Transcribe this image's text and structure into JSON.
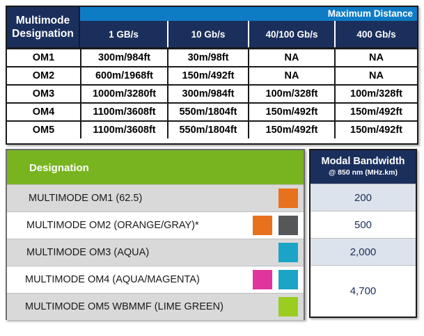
{
  "max_distance": {
    "corner_header": [
      "Multimode",
      "Designation"
    ],
    "group_header": "Maximum Distance",
    "speeds": [
      "1 GB/s",
      "10 Gb/s",
      "40/100 Gb/s",
      "400 Gb/s"
    ],
    "rows": [
      {
        "designation": "OM1",
        "values": [
          "300m/984ft",
          "30m/98ft",
          "NA",
          "NA"
        ]
      },
      {
        "designation": "OM2",
        "values": [
          "600m/1968ft",
          "150m/492ft",
          "NA",
          "NA"
        ]
      },
      {
        "designation": "OM3",
        "values": [
          "1000m/3280ft",
          "300m/984ft",
          "100m/328ft",
          "100m/328ft"
        ]
      },
      {
        "designation": "OM4",
        "values": [
          "1100m/3608ft",
          "550m/1804ft",
          "150m/492ft",
          "150m/492ft"
        ]
      },
      {
        "designation": "OM5",
        "values": [
          "1100m/3608ft",
          "550m/1804ft",
          "150m/492ft",
          "150m/492ft"
        ]
      }
    ]
  },
  "designation_table": {
    "header": "Designation",
    "header_color": "#78b420",
    "rows": [
      {
        "label": "MULTIMODE OM1 (62.5)",
        "colors": [
          "#e8711e"
        ]
      },
      {
        "label": "MULTIMODE OM2 (ORANGE/GRAY)*",
        "colors": [
          "#e8711e",
          "#555759"
        ]
      },
      {
        "label": "MULTIMODE OM3 (AQUA)",
        "colors": [
          "#1ca3c8"
        ]
      },
      {
        "label": "MULTIMODE OM4 (AQUA/MAGENTA)",
        "colors": [
          "#e0359a",
          "#1ca3c8"
        ]
      },
      {
        "label": "MULTIMODE OM5 WBMMF (LIME GREEN)",
        "colors": [
          "#9acd20"
        ]
      }
    ]
  },
  "bandwidth_table": {
    "title": "Modal Bandwidth",
    "subtitle": "@ 850 nm (MHz.km)",
    "values": [
      "200",
      "500",
      "2,000",
      "4,700"
    ]
  },
  "colors": {
    "navy": "#1b2f5c",
    "blue": "#0e7bc5",
    "green": "#78b420"
  }
}
